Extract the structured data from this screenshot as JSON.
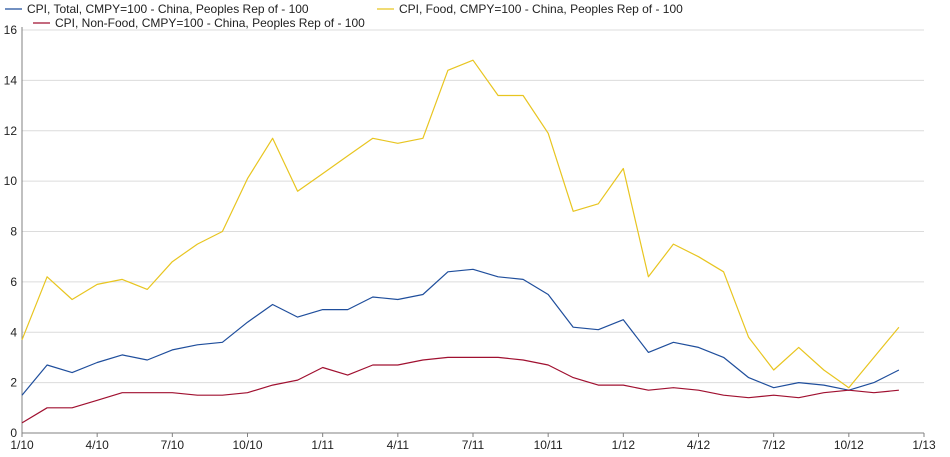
{
  "chart_data": {
    "type": "line",
    "x": [
      "1/10",
      "2/10",
      "3/10",
      "4/10",
      "5/10",
      "6/10",
      "7/10",
      "8/10",
      "9/10",
      "10/10",
      "11/10",
      "12/10",
      "1/11",
      "2/11",
      "3/11",
      "4/11",
      "5/11",
      "6/11",
      "7/11",
      "8/11",
      "9/11",
      "10/11",
      "11/11",
      "12/11",
      "1/12",
      "2/12",
      "3/12",
      "4/12",
      "5/12",
      "6/12",
      "7/12",
      "8/12",
      "9/12",
      "10/12",
      "11/12",
      "12/12"
    ],
    "series": [
      {
        "name": "CPI, Total, CMPY=100 - China, Peoples Rep of - 100",
        "color": "#1f4e9c",
        "values": [
          1.5,
          2.7,
          2.4,
          2.8,
          3.1,
          2.9,
          3.3,
          3.5,
          3.6,
          4.4,
          5.1,
          4.6,
          4.9,
          4.9,
          5.4,
          5.3,
          5.5,
          6.4,
          6.5,
          6.2,
          6.1,
          5.5,
          4.2,
          4.1,
          4.5,
          3.2,
          3.6,
          3.4,
          3.0,
          2.2,
          1.8,
          2.0,
          1.9,
          1.7,
          2.0,
          2.5
        ]
      },
      {
        "name": "CPI, Food, CMPY=100 - China, Peoples Rep of - 100",
        "color": "#e8c520",
        "values": [
          3.7,
          6.2,
          5.3,
          5.9,
          6.1,
          5.7,
          6.8,
          7.5,
          8.0,
          10.1,
          11.7,
          9.6,
          10.3,
          11.0,
          11.7,
          11.5,
          11.7,
          14.4,
          14.8,
          13.4,
          13.4,
          11.9,
          8.8,
          9.1,
          10.5,
          6.2,
          7.5,
          7.0,
          6.4,
          3.8,
          2.5,
          3.4,
          2.5,
          1.8,
          3.0,
          4.2
        ]
      },
      {
        "name": "CPI, Non-Food, CMPY=100 - China, Peoples Rep of - 100",
        "color": "#a01030",
        "values": [
          0.4,
          1.0,
          1.0,
          1.3,
          1.6,
          1.6,
          1.6,
          1.5,
          1.5,
          1.6,
          1.9,
          2.1,
          2.6,
          2.3,
          2.7,
          2.7,
          2.9,
          3.0,
          3.0,
          3.0,
          2.9,
          2.7,
          2.2,
          1.9,
          1.9,
          1.7,
          1.8,
          1.7,
          1.5,
          1.4,
          1.5,
          1.4,
          1.6,
          1.7,
          1.6,
          1.7
        ]
      }
    ],
    "x_ticks": [
      "1/10",
      "4/10",
      "7/10",
      "10/10",
      "1/11",
      "4/11",
      "7/11",
      "10/11",
      "1/12",
      "4/12",
      "7/12",
      "10/12",
      "1/13"
    ],
    "y_ticks": [
      "0",
      "2",
      "4",
      "6",
      "8",
      "10",
      "12",
      "14",
      "16"
    ],
    "ylim": [
      0,
      16
    ],
    "grid": true,
    "legend_position": "top"
  }
}
